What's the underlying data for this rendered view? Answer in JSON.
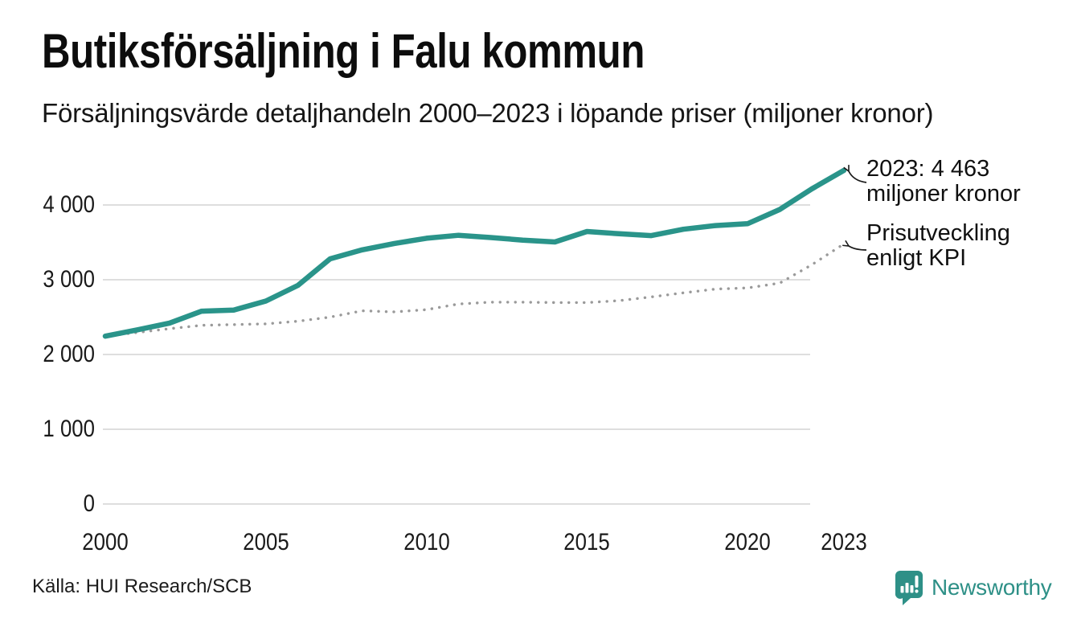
{
  "colors": {
    "sales_line": "#2A948A",
    "kpi_dots": "#9A9A9A",
    "grid": "#DEDEDE",
    "text": "#111111",
    "brand_teal": "#2E9087",
    "arrow": "#1A1A1A"
  },
  "chart_data": {
    "type": "line",
    "title": "Butiksförsäljning i Falu kommun",
    "subtitle": "Försäljningsvärde detaljhandeln 2000–2023 i löpande priser (miljoner kronor)",
    "source": "Källa: HUI Research/SCB",
    "xlabel": "",
    "ylabel": "miljoner kronor",
    "grid": "horizontal-only",
    "legend": "none",
    "ylim": [
      0,
      4600
    ],
    "x": [
      2000,
      2001,
      2002,
      2003,
      2004,
      2005,
      2006,
      2007,
      2008,
      2009,
      2010,
      2011,
      2012,
      2013,
      2014,
      2015,
      2016,
      2017,
      2018,
      2019,
      2020,
      2021,
      2022,
      2023
    ],
    "series": [
      {
        "name": "Butiksförsäljning i löpande priser",
        "style": "solid",
        "color": "#2A948A",
        "values": [
          2245,
          2330,
          2420,
          2580,
          2595,
          2715,
          2925,
          3280,
          3400,
          3485,
          3555,
          3595,
          3565,
          3530,
          3505,
          3645,
          3615,
          3590,
          3675,
          3725,
          3750,
          3940,
          4215,
          4463
        ]
      },
      {
        "name": "Prisutveckling enligt KPI",
        "style": "dotted",
        "color": "#9A9A9A",
        "values": [
          2245,
          2295,
          2345,
          2390,
          2400,
          2410,
          2445,
          2500,
          2585,
          2570,
          2600,
          2675,
          2700,
          2700,
          2695,
          2695,
          2720,
          2770,
          2825,
          2875,
          2890,
          2955,
          3200,
          3480
        ]
      }
    ],
    "y_ticks": [
      0,
      1000,
      2000,
      3000,
      4000
    ],
    "y_tick_labels": [
      "0",
      "1 000",
      "2 000",
      "3 000",
      "4 000"
    ],
    "x_ticks": [
      2000,
      2005,
      2010,
      2015,
      2020,
      2023
    ],
    "x_tick_labels": [
      "2000",
      "2005",
      "2010",
      "2015",
      "2020",
      "2023"
    ],
    "annotations": [
      {
        "line1": "2023: 4 463",
        "line2": "miljoner kronor",
        "target": "solid series endpoint 2023"
      },
      {
        "line1": "Prisutveckling",
        "line2": "enligt KPI",
        "target": "dotted series endpoint 2023"
      }
    ]
  },
  "branding": {
    "wordmark": "Newsworthy"
  }
}
